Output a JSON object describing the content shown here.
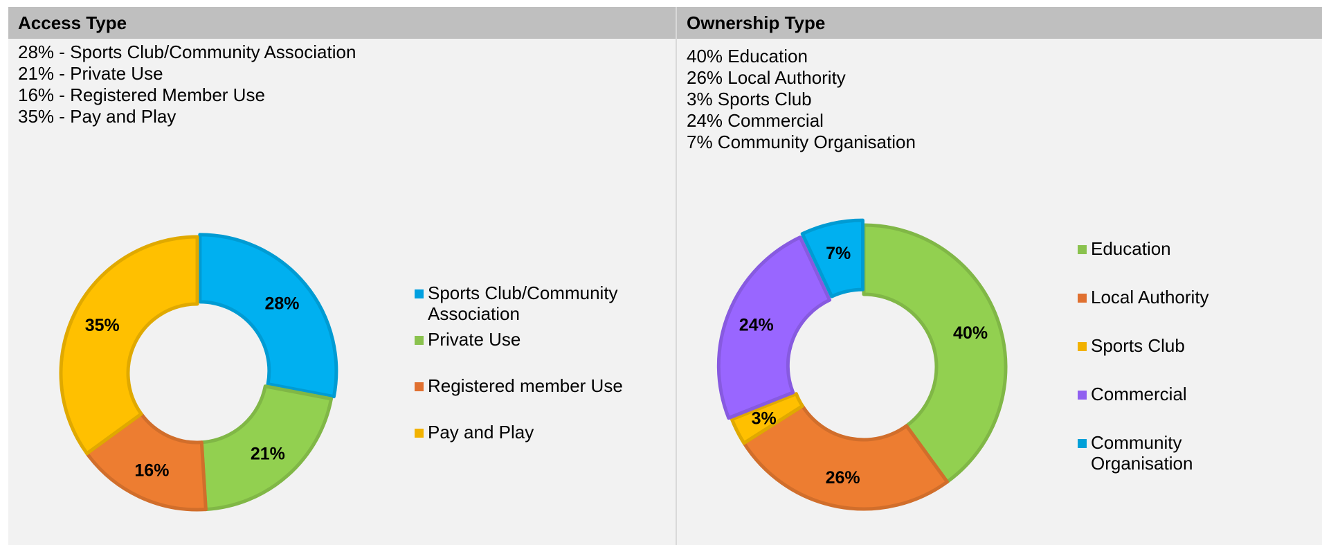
{
  "access": {
    "header": "Access Type",
    "summary": [
      "28% - Sports Club/Community Association",
      "21% - Private Use",
      "16% - Registered Member Use",
      "35% - Pay and Play"
    ]
  },
  "ownership": {
    "header": "Ownership Type",
    "summary": [
      "40% Education",
      "26% Local Authority",
      "3% Sports Club",
      "24% Commercial",
      "7% Community Organisation"
    ]
  },
  "chart_data": [
    {
      "type": "pie",
      "variant": "donut",
      "categories": [
        "Sports Club/Community Association",
        "Private Use",
        "Registered member Use",
        "Pay and Play"
      ],
      "legend_lines": [
        [
          "Sports Club/Community",
          "Association"
        ],
        [
          "Private Use"
        ],
        [
          "Registered member Use"
        ],
        [
          "Pay and Play"
        ]
      ],
      "values": [
        28,
        21,
        16,
        35
      ],
      "data_labels": [
        "28%",
        "21%",
        "16%",
        "35%"
      ],
      "colors": [
        "#00b0f0",
        "#92d050",
        "#ed7d31",
        "#ffc000"
      ],
      "legend_colors": [
        "#00a0e0",
        "#8ac24e",
        "#e07030",
        "#f2b200"
      ],
      "legend_position": "right"
    },
    {
      "type": "pie",
      "variant": "donut",
      "categories": [
        "Education",
        "Local Authority",
        "Sports Club",
        "Commercial",
        "Community Organisation"
      ],
      "legend_lines": [
        [
          "Education"
        ],
        [
          "Local Authority"
        ],
        [
          "Sports Club"
        ],
        [
          "Commercial"
        ],
        [
          "Community",
          "Organisation"
        ]
      ],
      "values": [
        40,
        26,
        3,
        24,
        7
      ],
      "data_labels": [
        "40%",
        "26%",
        "3%",
        "24%",
        "7%"
      ],
      "colors": [
        "#92d050",
        "#ed7d31",
        "#ffc000",
        "#9966ff",
        "#00b0f0"
      ],
      "legend_colors": [
        "#8ac24e",
        "#e07030",
        "#f2b200",
        "#9060f0",
        "#00a0d8"
      ],
      "legend_position": "right"
    }
  ]
}
